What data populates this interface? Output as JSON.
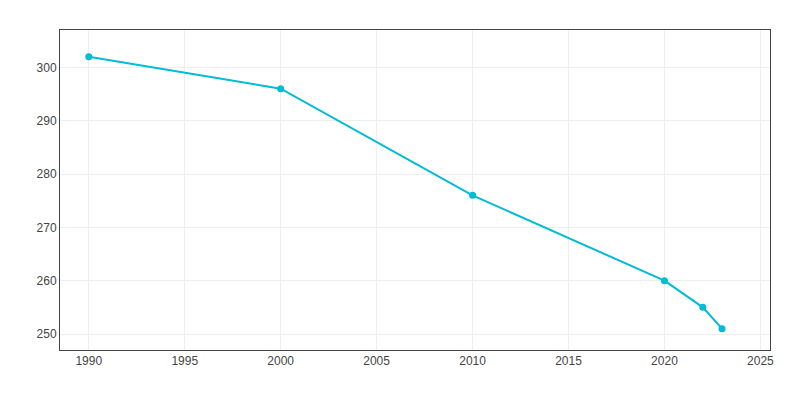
{
  "chart_data": {
    "type": "line",
    "x": [
      1990,
      2000,
      2010,
      2020,
      2022,
      2023
    ],
    "values": [
      302,
      296,
      276,
      260,
      255,
      251
    ],
    "color": "#00BCD4",
    "marker": "circle",
    "xlim": [
      1988.5,
      2025.5
    ],
    "ylim": [
      247,
      307
    ],
    "xticks": [
      1990,
      1995,
      2000,
      2005,
      2010,
      2015,
      2020,
      2025
    ],
    "yticks": [
      250,
      260,
      270,
      280,
      290,
      300
    ],
    "grid": true
  }
}
